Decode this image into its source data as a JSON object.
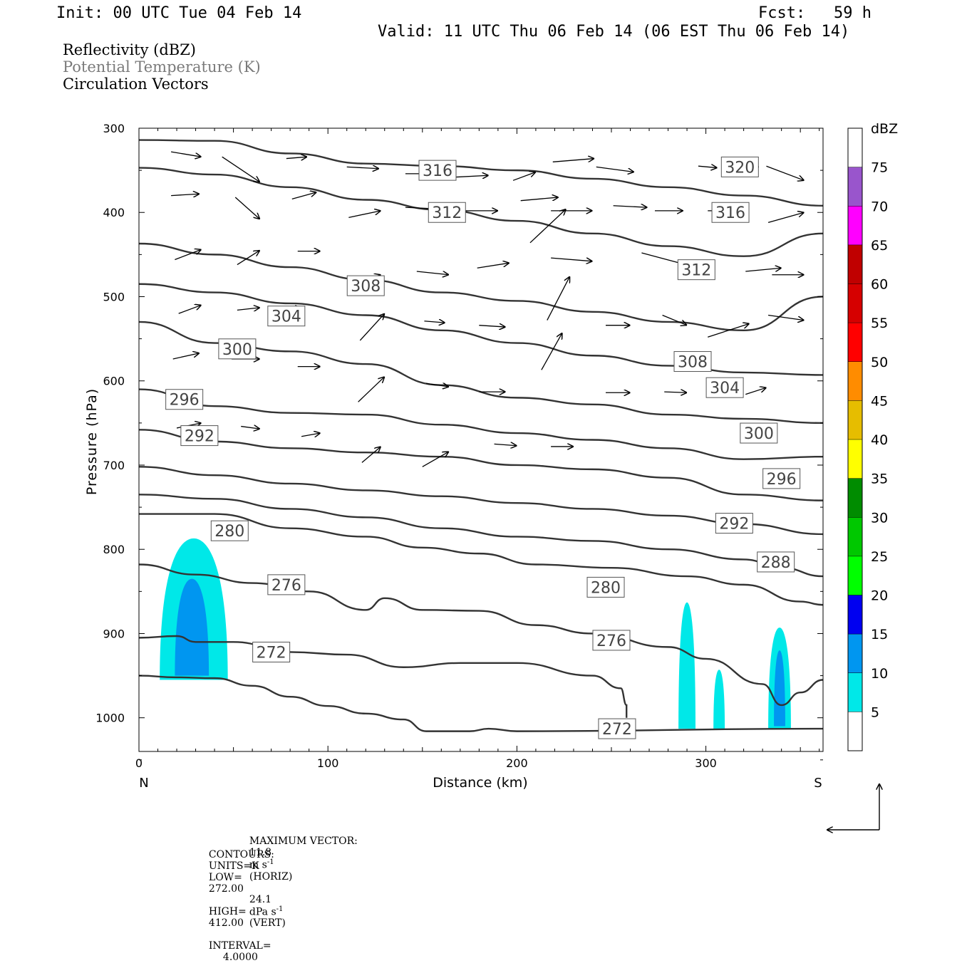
{
  "header": {
    "init": "Init: 00 UTC Tue 04 Feb 14",
    "fcst": "Fcst:   59 h",
    "valid": "Valid: 11 UTC Thu 06 Feb 14 (06 EST Thu 06 Feb 14)"
  },
  "legend": {
    "line1": "Reflectivity (dBZ)",
    "line2": "Potential Temperature (K)",
    "line3": "Circulation Vectors",
    "line2_color": "#7a7a7a"
  },
  "footer": {
    "max_vector_label": "MAXIMUM VECTOR:",
    "max_horiz_value": "11.8",
    "max_horiz_units": "m s",
    "max_horiz_tag": "(HORIZ)",
    "max_vert_value": "24.1",
    "max_vert_units": "dPa s",
    "max_vert_tag": "(VERT)",
    "exponent": "-1",
    "contours_label": "CONTOURS:",
    "units": "UNITS=K",
    "low": "LOW=",
    "low_value": "272.00",
    "high": "HIGH=",
    "high_value": "412.00",
    "interval": "INTERVAL=",
    "interval_value": "4.0000"
  },
  "chart_data": {
    "type": "cross-section",
    "xlabel": "Distance (km)",
    "ylabel": "Pressure (hPa)",
    "xlim": [
      0,
      362
    ],
    "ylim": [
      1040,
      300
    ],
    "x_ticks": [
      "0",
      "100",
      "200",
      "300"
    ],
    "x_tick_values": [
      0,
      100,
      200,
      300
    ],
    "y_ticks": [
      "300",
      "400",
      "500",
      "600",
      "700",
      "800",
      "900",
      "1000"
    ],
    "y_tick_values": [
      300,
      400,
      500,
      600,
      700,
      800,
      900,
      1000
    ],
    "x_end_labels": {
      "left": "N",
      "right": "S"
    },
    "colorbar": {
      "label": "dBZ",
      "levels": [
        "5",
        "10",
        "15",
        "20",
        "25",
        "30",
        "35",
        "40",
        "45",
        "50",
        "55",
        "60",
        "65",
        "70",
        "75"
      ],
      "colors": [
        "#ffffff",
        "#00e8e8",
        "#0096f0",
        "#0000f0",
        "#00ff00",
        "#00c800",
        "#008c00",
        "#ffff00",
        "#e6bd00",
        "#ff8c00",
        "#ff0000",
        "#d60000",
        "#c00000",
        "#ff00ff",
        "#9955cc",
        "#ffffff"
      ]
    },
    "theta_contours": [
      {
        "label": "272",
        "points": [
          [
            0,
            950
          ],
          [
            20,
            952
          ],
          [
            40,
            953
          ],
          [
            60,
            962
          ],
          [
            80,
            975
          ],
          [
            100,
            986
          ],
          [
            120,
            995
          ],
          [
            140,
            1002
          ],
          [
            152,
            1016
          ],
          [
            175,
            1016
          ],
          [
            185,
            1013
          ],
          [
            200,
            1016
          ],
          [
            362,
            1013
          ]
        ],
        "label_at": [
          70,
          915
        ]
      },
      {
        "label": "272",
        "points": [
          [
            0,
            905
          ],
          [
            20,
            903
          ],
          [
            30,
            910
          ],
          [
            50,
            910
          ],
          [
            80,
            922
          ],
          [
            110,
            925
          ],
          [
            140,
            940
          ],
          [
            170,
            935
          ],
          [
            200,
            935
          ],
          [
            240,
            950
          ],
          [
            255,
            965
          ],
          [
            258,
            985
          ],
          [
            258,
            1000
          ]
        ],
        "label_at": [
          255,
          1013
        ]
      },
      {
        "label": "276",
        "points": [
          [
            0,
            818
          ],
          [
            30,
            830
          ],
          [
            60,
            840
          ],
          [
            90,
            850
          ],
          [
            120,
            872
          ],
          [
            130,
            858
          ],
          [
            150,
            872
          ],
          [
            180,
            873
          ],
          [
            210,
            890
          ],
          [
            240,
            900
          ],
          [
            280,
            916
          ],
          [
            300,
            930
          ],
          [
            330,
            960
          ],
          [
            340,
            985
          ],
          [
            350,
            970
          ],
          [
            362,
            955
          ]
        ],
        "label_at": [
          275,
          908
        ]
      },
      {
        "label": "280",
        "points": [
          [
            0,
            758
          ],
          [
            40,
            758
          ],
          [
            80,
            775
          ],
          [
            120,
            785
          ],
          [
            150,
            798
          ],
          [
            180,
            805
          ],
          [
            210,
            818
          ],
          [
            250,
            822
          ],
          [
            290,
            832
          ],
          [
            320,
            842
          ],
          [
            350,
            862
          ],
          [
            362,
            866
          ]
        ],
        "label_at": [
          247,
          823
        ]
      },
      {
        "label": "288",
        "points": [
          [
            0,
            735
          ],
          [
            40,
            740
          ],
          [
            80,
            752
          ],
          [
            120,
            762
          ],
          [
            160,
            775
          ],
          [
            200,
            785
          ],
          [
            240,
            790
          ],
          [
            280,
            800
          ],
          [
            320,
            812
          ],
          [
            340,
            822
          ],
          [
            362,
            832
          ]
        ],
        "label_at": [
          337,
          790
        ]
      },
      {
        "label": "292",
        "points": [
          [
            0,
            702
          ],
          [
            40,
            712
          ],
          [
            80,
            722
          ],
          [
            120,
            730
          ],
          [
            160,
            737
          ],
          [
            200,
            745
          ],
          [
            240,
            752
          ],
          [
            280,
            760
          ],
          [
            320,
            770
          ],
          [
            362,
            782
          ]
        ],
        "label_at": [
          315,
          733
        ]
      },
      {
        "label": "296",
        "points": [
          [
            0,
            658
          ],
          [
            40,
            672
          ],
          [
            80,
            680
          ],
          [
            120,
            685
          ],
          [
            160,
            690
          ],
          [
            200,
            700
          ],
          [
            240,
            705
          ],
          [
            280,
            715
          ],
          [
            320,
            735
          ],
          [
            362,
            742
          ]
        ],
        "label_at": [
          340,
          680
        ]
      },
      {
        "label": "300",
        "points": [
          [
            0,
            610
          ],
          [
            40,
            630
          ],
          [
            80,
            638
          ],
          [
            120,
            640
          ],
          [
            160,
            652
          ],
          [
            200,
            662
          ],
          [
            240,
            670
          ],
          [
            280,
            680
          ],
          [
            320,
            693
          ],
          [
            362,
            690
          ]
        ],
        "label_at": [
          328,
          627
        ]
      },
      {
        "label": "304",
        "points": [
          [
            0,
            530
          ],
          [
            40,
            555
          ],
          [
            80,
            565
          ],
          [
            120,
            580
          ],
          [
            160,
            605
          ],
          [
            200,
            620
          ],
          [
            240,
            628
          ],
          [
            280,
            640
          ],
          [
            320,
            645
          ],
          [
            362,
            650
          ]
        ],
        "label_at": [
          310,
          572
        ]
      },
      {
        "label": "308",
        "points": [
          [
            0,
            485
          ],
          [
            40,
            495
          ],
          [
            80,
            508
          ],
          [
            120,
            522
          ],
          [
            160,
            540
          ],
          [
            200,
            555
          ],
          [
            240,
            570
          ],
          [
            280,
            582
          ],
          [
            320,
            590
          ],
          [
            362,
            593
          ]
        ],
        "label_at": [
          293,
          500
        ]
      },
      {
        "label": "312",
        "points": [
          [
            0,
            437
          ],
          [
            40,
            450
          ],
          [
            80,
            465
          ],
          [
            120,
            480
          ],
          [
            160,
            495
          ],
          [
            200,
            505
          ],
          [
            240,
            518
          ],
          [
            280,
            530
          ],
          [
            320,
            540
          ],
          [
            362,
            500
          ]
        ],
        "label_at": [
          295,
          463
        ]
      },
      {
        "label": "316",
        "points": [
          [
            0,
            347
          ],
          [
            40,
            355
          ],
          [
            80,
            370
          ],
          [
            120,
            385
          ],
          [
            160,
            397
          ],
          [
            200,
            410
          ],
          [
            240,
            425
          ],
          [
            280,
            440
          ],
          [
            320,
            452
          ],
          [
            362,
            425
          ]
        ],
        "label_at": [
          313,
          398
        ]
      },
      {
        "label": "320",
        "points": [
          [
            0,
            314
          ],
          [
            40,
            315
          ],
          [
            80,
            330
          ],
          [
            120,
            342
          ],
          [
            160,
            345
          ],
          [
            200,
            350
          ],
          [
            240,
            360
          ],
          [
            280,
            370
          ],
          [
            320,
            380
          ],
          [
            362,
            392
          ]
        ],
        "label_at": [
          318,
          346
        ]
      }
    ],
    "label_positions": [
      {
        "label": "272",
        "x": 70,
        "p": 922
      },
      {
        "label": "272",
        "x": 253,
        "p": 1013
      },
      {
        "label": "276",
        "x": 78,
        "p": 842
      },
      {
        "label": "276",
        "x": 250,
        "p": 908
      },
      {
        "label": "280",
        "x": 48,
        "p": 778
      },
      {
        "label": "280",
        "x": 247,
        "p": 845
      },
      {
        "label": "288",
        "x": 337,
        "p": 815
      },
      {
        "label": "292",
        "x": 32,
        "p": 665
      },
      {
        "label": "292",
        "x": 315,
        "p": 769
      },
      {
        "label": "296",
        "x": 24,
        "p": 622
      },
      {
        "label": "296",
        "x": 340,
        "p": 716
      },
      {
        "label": "300",
        "x": 52,
        "p": 562
      },
      {
        "label": "300",
        "x": 328,
        "p": 662
      },
      {
        "label": "304",
        "x": 78,
        "p": 523
      },
      {
        "label": "304",
        "x": 310,
        "p": 608
      },
      {
        "label": "308",
        "x": 120,
        "p": 487
      },
      {
        "label": "308",
        "x": 293,
        "p": 577
      },
      {
        "label": "312",
        "x": 163,
        "p": 400
      },
      {
        "label": "312",
        "x": 295,
        "p": 468
      },
      {
        "label": "316",
        "x": 158,
        "p": 350
      },
      {
        "label": "316",
        "x": 313,
        "p": 400
      },
      {
        "label": "320",
        "x": 318,
        "p": 346
      }
    ],
    "reflectivity_cells": [
      {
        "dbz": 5,
        "x_center": 29,
        "x_halfwidth": 18,
        "p_top": 787,
        "p_bottom": 955
      },
      {
        "dbz": 10,
        "x_center": 28,
        "x_halfwidth": 9,
        "p_top": 835,
        "p_bottom": 950
      },
      {
        "dbz": 5,
        "x_center": 290,
        "x_halfwidth": 4.5,
        "p_top": 863,
        "p_bottom": 1013
      },
      {
        "dbz": 5,
        "x_center": 307,
        "x_halfwidth": 3,
        "p_top": 943,
        "p_bottom": 1013
      },
      {
        "dbz": 5,
        "x_center": 339,
        "x_halfwidth": 6,
        "p_top": 893,
        "p_bottom": 1013
      },
      {
        "dbz": 10,
        "x_center": 339,
        "x_halfwidth": 3,
        "p_top": 920,
        "p_bottom": 1010
      }
    ],
    "vectors": [
      [
        17,
        328,
        33,
        334
      ],
      [
        44,
        334,
        64,
        364
      ],
      [
        78,
        336,
        89,
        334
      ],
      [
        110,
        346,
        127,
        348
      ],
      [
        141,
        354,
        160,
        354
      ],
      [
        168,
        358,
        185,
        356
      ],
      [
        198,
        362,
        210,
        352
      ],
      [
        219,
        340,
        241,
        336
      ],
      [
        242,
        346,
        262,
        352
      ],
      [
        296,
        345,
        306,
        347
      ],
      [
        316,
        345,
        328,
        346
      ],
      [
        332,
        345,
        352,
        362
      ],
      [
        17,
        380,
        32,
        378
      ],
      [
        51,
        382,
        64,
        408
      ],
      [
        81,
        384,
        94,
        376
      ],
      [
        111,
        406,
        128,
        398
      ],
      [
        141,
        394,
        160,
        396
      ],
      [
        168,
        398,
        190,
        398
      ],
      [
        202,
        386,
        222,
        382
      ],
      [
        218,
        398,
        240,
        398
      ],
      [
        251,
        392,
        269,
        394
      ],
      [
        273,
        398,
        288,
        398
      ],
      [
        301,
        398,
        316,
        398
      ],
      [
        333,
        412,
        352,
        400
      ],
      [
        19,
        456,
        33,
        444
      ],
      [
        52,
        462,
        64,
        445
      ],
      [
        84,
        446,
        96,
        446
      ],
      [
        114,
        484,
        128,
        474
      ],
      [
        147,
        470,
        164,
        474
      ],
      [
        179,
        466,
        196,
        460
      ],
      [
        207,
        436,
        226,
        396
      ],
      [
        218,
        454,
        240,
        458
      ],
      [
        266,
        448,
        296,
        466
      ],
      [
        321,
        470,
        340,
        466
      ],
      [
        335,
        474,
        352,
        474
      ],
      [
        21,
        520,
        33,
        510
      ],
      [
        52,
        516,
        64,
        513
      ],
      [
        71,
        514,
        86,
        514
      ],
      [
        117,
        552,
        130,
        520
      ],
      [
        151,
        529,
        162,
        531
      ],
      [
        180,
        534,
        194,
        536
      ],
      [
        216,
        528,
        228,
        476
      ],
      [
        247,
        534,
        260,
        534
      ],
      [
        277,
        522,
        290,
        534
      ],
      [
        301,
        548,
        323,
        532
      ],
      [
        333,
        522,
        352,
        528
      ],
      [
        18,
        574,
        32,
        567
      ],
      [
        49,
        574,
        64,
        574
      ],
      [
        84,
        583,
        96,
        583
      ],
      [
        116,
        625,
        130,
        595
      ],
      [
        152,
        603,
        164,
        607
      ],
      [
        180,
        613,
        194,
        613
      ],
      [
        213,
        587,
        224,
        543
      ],
      [
        247,
        614,
        260,
        614
      ],
      [
        278,
        613,
        290,
        614
      ],
      [
        321,
        616,
        332,
        608
      ],
      [
        20,
        656,
        33,
        650
      ],
      [
        54,
        654,
        64,
        657
      ],
      [
        86,
        666,
        96,
        662
      ],
      [
        118,
        697,
        128,
        678
      ],
      [
        150,
        702,
        164,
        684
      ],
      [
        188,
        675,
        200,
        677
      ],
      [
        218,
        678,
        230,
        678
      ]
    ]
  }
}
